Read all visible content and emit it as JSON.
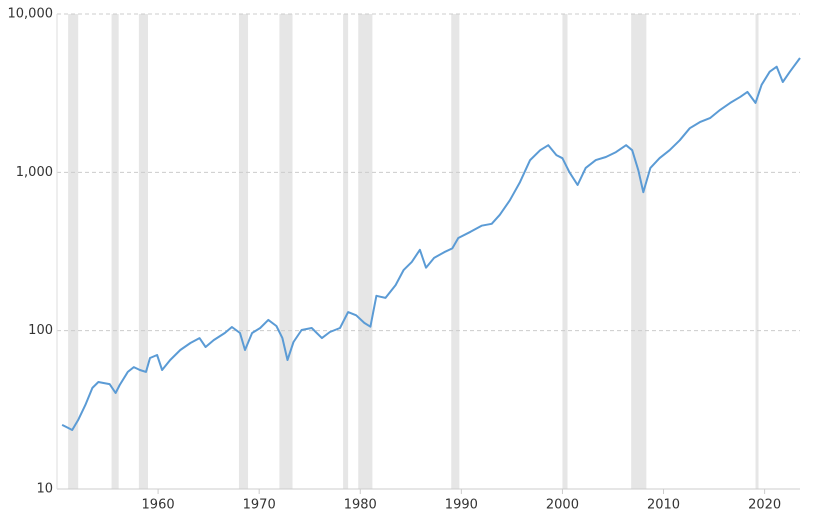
{
  "chart_data": {
    "type": "line",
    "x": [
      1950.5,
      1951.1,
      1951.5,
      1952.1,
      1952.8,
      1953.5,
      1954.1,
      1954.6,
      1955.2,
      1955.8,
      1956.2,
      1957.0,
      1957.6,
      1958.2,
      1958.8,
      1959.2,
      1959.9,
      1960.4,
      1961.2,
      1962.2,
      1963.2,
      1964.1,
      1964.7,
      1965.5,
      1966.6,
      1967.3,
      1968.1,
      1968.6,
      1969.3,
      1970.1,
      1970.9,
      1971.7,
      1972.3,
      1972.8,
      1973.4,
      1974.2,
      1975.2,
      1976.2,
      1977.0,
      1978.0,
      1978.8,
      1979.6,
      1980.4,
      1981.0,
      1981.6,
      1982.5,
      1983.5,
      1984.3,
      1985.1,
      1985.9,
      1986.5,
      1987.3,
      1988.3,
      1989.1,
      1989.7,
      1990.9,
      1992.0,
      1993.0,
      1993.8,
      1994.8,
      1995.8,
      1996.8,
      1997.8,
      1998.6,
      1999.4,
      2000.0,
      2000.7,
      2001.5,
      2002.3,
      2003.3,
      2004.3,
      2005.3,
      2006.3,
      2006.9,
      2007.5,
      2008.0,
      2008.7,
      2009.6,
      2010.6,
      2011.6,
      2012.6,
      2013.6,
      2014.6,
      2015.6,
      2016.6,
      2017.6,
      2018.3,
      2019.1,
      2019.7,
      2020.5,
      2021.2,
      2021.8,
      2022.5,
      2023.5
    ],
    "values": [
      25.4,
      24.3,
      23.6,
      27.3,
      33.9,
      43.5,
      47.4,
      46.7,
      46,
      40.4,
      45.4,
      54.9,
      58.9,
      56.4,
      54.9,
      67.2,
      70.2,
      56.4,
      65.3,
      75.5,
      83.6,
      89.8,
      78.9,
      87.2,
      96.7,
      105.5,
      96.7,
      75.5,
      96.7,
      104,
      117,
      107,
      89.8,
      65.3,
      84.8,
      101,
      104,
      89.8,
      98.1,
      104,
      131,
      125,
      112,
      106,
      166,
      161,
      194,
      242,
      272,
      324,
      250,
      288,
      313,
      331,
      385,
      421,
      460,
      473,
      539,
      667,
      868,
      1195,
      1380,
      1483,
      1285,
      1228,
      1001,
      832,
      1066,
      1195,
      1249,
      1342,
      1483,
      1380,
      1031,
      749,
      1066,
      1229,
      1380,
      1594,
      1900,
      2077,
      2200,
      2478,
      2744,
      2998,
      3223,
      2744,
      3570,
      4320,
      4645,
      3718,
      4320,
      5270
    ],
    "color": "#5b9bd5",
    "shaded_ranges": [
      [
        1951.1,
        1952.1
      ],
      [
        1955.4,
        1956.1
      ],
      [
        1958.1,
        1959.0
      ],
      [
        1968.0,
        1968.9
      ],
      [
        1972.0,
        1973.3
      ],
      [
        1978.3,
        1978.8
      ],
      [
        1979.8,
        1981.2
      ],
      [
        1989.0,
        1989.8
      ],
      [
        2000.0,
        2000.5
      ],
      [
        2006.8,
        2008.3
      ],
      [
        2019.1,
        2019.4
      ]
    ],
    "shade_color": "#e6e6e6",
    "xlim": [
      1950,
      2023.5
    ],
    "xticks": [
      1960,
      1970,
      1980,
      1990,
      2000,
      2010,
      2020
    ],
    "ylim": [
      10,
      10000
    ],
    "yticks": [
      10,
      100,
      {
        "value": 1000,
        "label": "1,000"
      },
      {
        "value": 10000,
        "label": "10,000"
      }
    ],
    "log_y": true,
    "grid": true
  }
}
